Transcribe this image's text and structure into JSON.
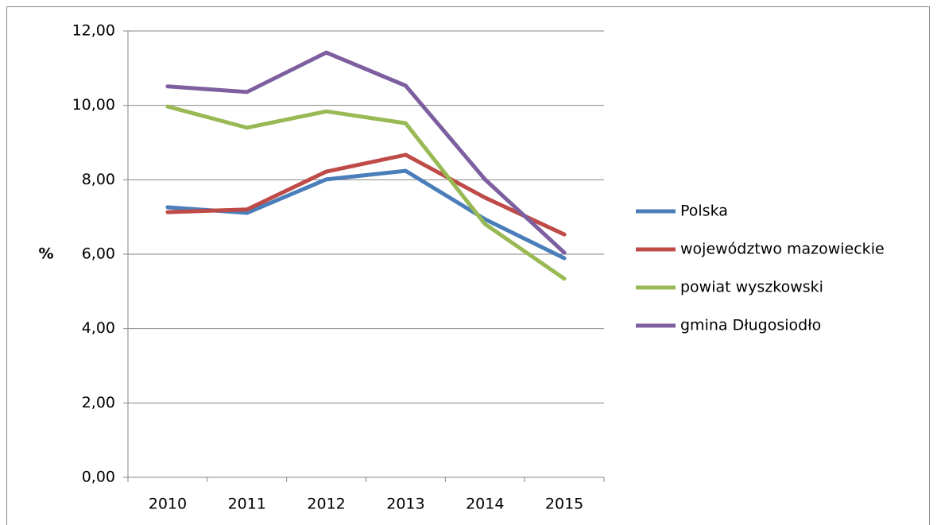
{
  "chart_data": {
    "type": "line",
    "y_label": "%",
    "categories": [
      "2010",
      "2011",
      "2012",
      "2013",
      "2014",
      "2015"
    ],
    "series": [
      {
        "name": "Polska",
        "color": "#4a7ebb",
        "values": [
          7.26,
          7.11,
          8.01,
          8.24,
          6.94,
          5.89
        ]
      },
      {
        "name": "województwo mazowieckie",
        "color": "#be4b48",
        "values": [
          7.13,
          7.2,
          8.22,
          8.67,
          7.52,
          6.53
        ]
      },
      {
        "name": "powiat wyszkowski",
        "color": "#98b954",
        "values": [
          9.97,
          9.4,
          9.84,
          9.52,
          6.81,
          5.34
        ]
      },
      {
        "name": "gmina Długosiodło",
        "color": "#7d5fa0",
        "values": [
          10.51,
          10.36,
          11.42,
          10.53,
          8.01,
          6.04
        ]
      }
    ],
    "ylim": [
      0,
      12
    ],
    "yticks": [
      {
        "value": 0,
        "label": "0,00"
      },
      {
        "value": 2,
        "label": "2,00"
      },
      {
        "value": 4,
        "label": "4,00"
      },
      {
        "value": 6,
        "label": "6,00"
      },
      {
        "value": 8,
        "label": "8,00"
      },
      {
        "value": 10,
        "label": "10,00"
      },
      {
        "value": 12,
        "label": "12,00"
      }
    ],
    "grid": true,
    "legend": "right"
  }
}
